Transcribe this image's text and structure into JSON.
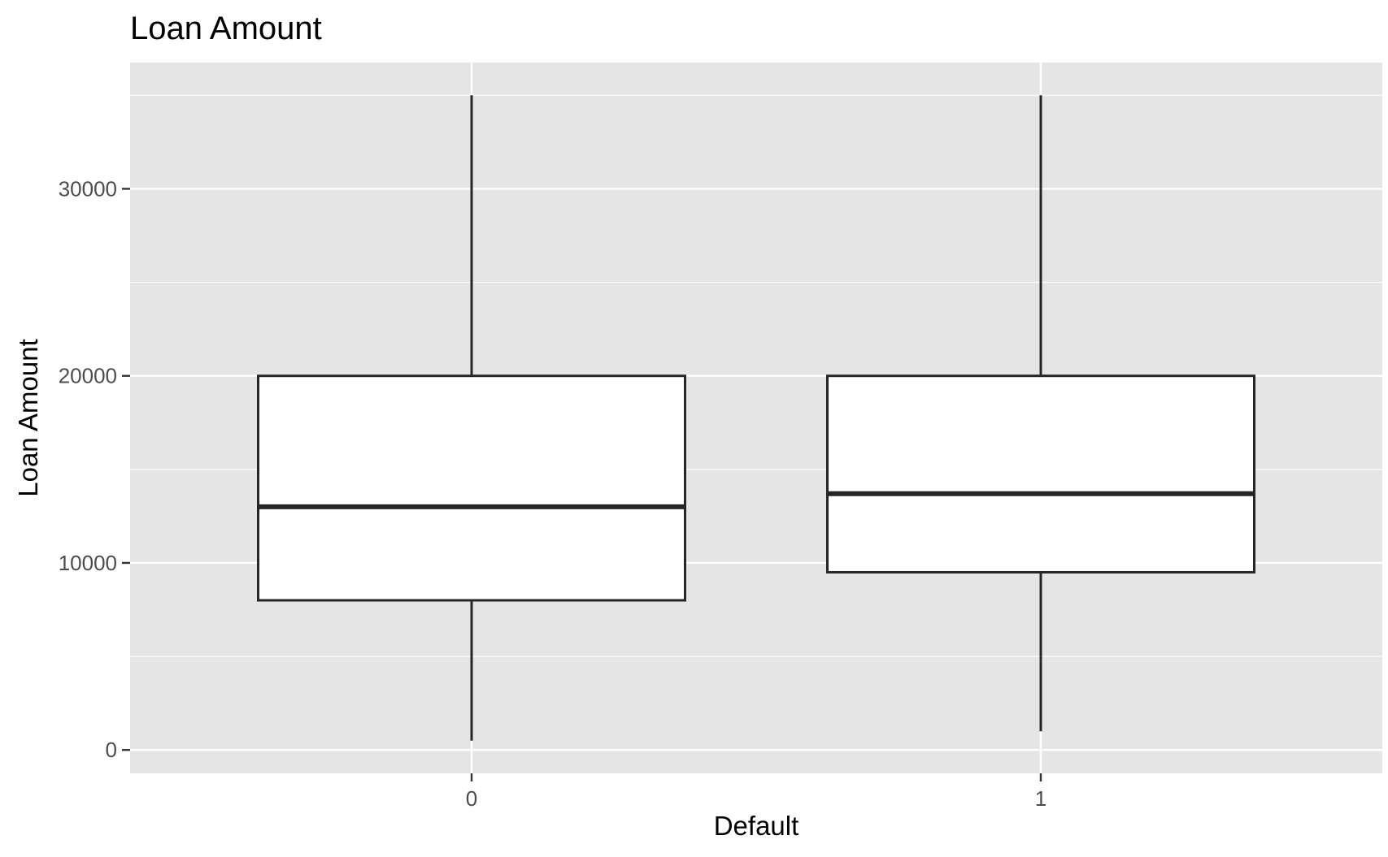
{
  "chart_data": {
    "type": "boxplot",
    "title": "Loan Amount",
    "xlabel": "Default",
    "ylabel": "Loan Amount",
    "categories": [
      "0",
      "1"
    ],
    "boxes": [
      {
        "category": "0",
        "whisker_low": 500,
        "q1": 8000,
        "median": 13000,
        "q3": 20000,
        "whisker_high": 35000
      },
      {
        "category": "1",
        "whisker_low": 1000,
        "q1": 9500,
        "median": 13700,
        "q3": 20000,
        "whisker_high": 35000
      }
    ],
    "ylim": [
      -1250,
      36750
    ],
    "y_ticks": [
      0,
      10000,
      20000,
      30000
    ],
    "y_tick_labels": [
      "0",
      "10000",
      "20000",
      "30000"
    ],
    "grid": true,
    "colors": {
      "panel_background": "#e5e5e5",
      "grid_line": "#ffffff",
      "box_fill": "#ffffff",
      "box_stroke": "#262626"
    }
  }
}
